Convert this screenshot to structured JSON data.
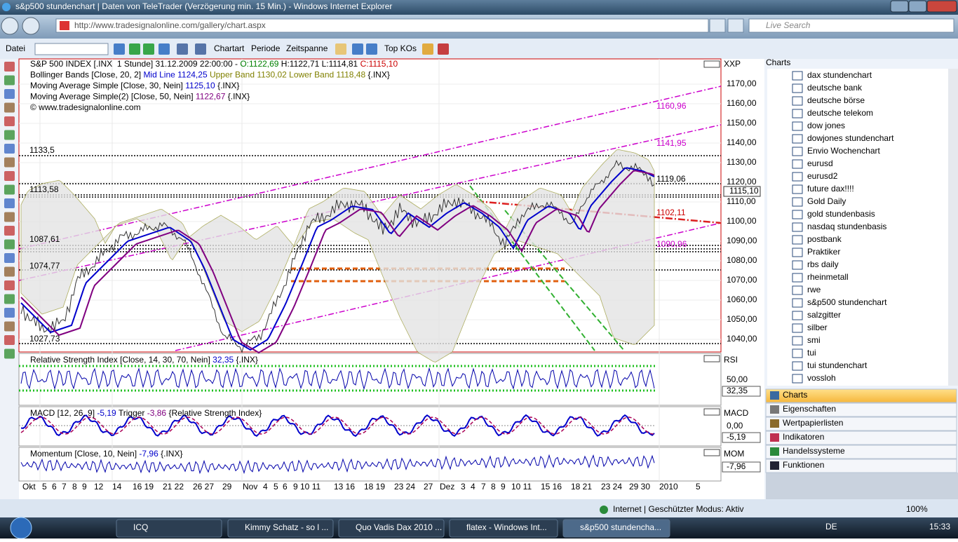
{
  "window": {
    "title": "s&p500 stundenchart | Daten von TeleTrader (Verzögerung min. 15 Min.) - Windows Internet Explorer",
    "address": "http://www.tradesignalonline.com/gallery/chart.aspx",
    "search": "Live Search"
  },
  "toolbar": {
    "file": "Datei",
    "chart_type": "Chartart",
    "period": "Periode",
    "timespan": "Zeitspanne",
    "top": "Top KOs"
  },
  "price_pane": {
    "header": [
      [
        {
          "text": "S&P 500 INDEX [.INX  1 Stunde] 31.12.2009 22:00:00 - ",
          "color": "#000000"
        },
        {
          "text": "O:1122,69",
          "color": "#008000"
        },
        {
          "text": " H:1122,71 L:1114,81 ",
          "color": "#000000"
        },
        {
          "text": "C:1115,10",
          "color": "#cc0000"
        }
      ],
      [
        {
          "text": "Bollinger Bands [Close, 20, 2] ",
          "color": "#000000"
        },
        {
          "text": "Mid Line 1124,25",
          "color": "#0000cc"
        },
        {
          "text": " Upper Band 1130,02 Lower Band 1118,48",
          "color": "#808000"
        },
        {
          "text": " {.INX}",
          "color": "#000000"
        }
      ],
      [
        {
          "text": "Moving Average Simple [Close, 30, Nein] ",
          "color": "#000000"
        },
        {
          "text": "1125,10",
          "color": "#0000cc"
        },
        {
          "text": " {.INX}",
          "color": "#000000"
        }
      ],
      [
        {
          "text": "Moving Average Simple(2) [Close, 50, Nein] ",
          "color": "#000000"
        },
        {
          "text": "1122,67",
          "color": "#800080"
        },
        {
          "text": " {.INX}",
          "color": "#000000"
        }
      ],
      [
        {
          "text": "© www.tradesignalonline.com",
          "color": "#000000"
        }
      ]
    ],
    "axis_title": "XXP",
    "axis_labels": [
      "1170,00",
      "1160,00",
      "1150,00",
      "1140,00",
      "1130,00",
      "1120,00",
      "1110,00",
      "1100,00",
      "1090,00",
      "1080,00",
      "1070,00",
      "1060,00",
      "1050,00",
      "1040,00"
    ],
    "levels_left": [
      "1133,5",
      "1113,58",
      "1087,61",
      "1074,77",
      "1027,73"
    ],
    "levels_right": [
      {
        "text": "1160,96",
        "color": "#cc00cc"
      },
      {
        "text": "1141,95",
        "color": "#cc00cc"
      },
      {
        "text": "1119,06",
        "color": "#000000"
      },
      {
        "text": "1102,11",
        "color": "#cc0000"
      },
      {
        "text": "1090,96",
        "color": "#cc00cc"
      }
    ],
    "last": "1115,10"
  },
  "indicator_panes": [
    {
      "header": [
        {
          "text": "Relative Strength Index [Close, 14, 30, 70, Nein] ",
          "color": "#000000"
        },
        {
          "text": "32,35",
          "color": "#0000cc"
        },
        {
          "text": " {.INX}",
          "color": "#000000"
        }
      ],
      "axis_title": "RSI",
      "axis_label": "50,00",
      "last": "32,35"
    },
    {
      "header": [
        {
          "text": "MACD [12, 26, 9] ",
          "color": "#000000"
        },
        {
          "text": "-5,19",
          "color": "#0000cc"
        },
        {
          "text": " Trigger ",
          "color": "#000000"
        },
        {
          "text": "-3,86",
          "color": "#800080"
        },
        {
          "text": " {Relative Strength Index}",
          "color": "#000000"
        }
      ],
      "axis_title": "MACD",
      "axis_label": "0,00",
      "last": "-5,19"
    },
    {
      "header": [
        {
          "text": "Momentum [Close, 10, Nein] ",
          "color": "#000000"
        },
        {
          "text": "-7,96",
          "color": "#0000cc"
        },
        {
          "text": " {.INX}",
          "color": "#000000"
        }
      ],
      "axis_title": "MOM",
      "last": "-7,96"
    }
  ],
  "x_axis": [
    "Okt",
    "5",
    "6",
    "7",
    "8",
    "9",
    "12",
    "14",
    "16 19",
    "21 22",
    "26 27",
    "29",
    "Nov",
    "4",
    "5",
    "6",
    "9 10 11",
    "13 16",
    "18 19",
    "23 24",
    "27",
    "Dez",
    "3",
    "4",
    "7",
    "8",
    "9",
    "10 11",
    "15 16",
    "18 21",
    "23 24",
    "29 30",
    "2010",
    "5"
  ],
  "sidebar": {
    "title": "Charts",
    "items": [
      "dax stundenchart",
      "deutsche bank",
      "deutsche börse",
      "deutsche telekom",
      "dow jones",
      "dowjones stundenchart",
      "Envio Wochenchart",
      "eurusd",
      "eurusd2",
      "future dax!!!!",
      "Gold Daily",
      "gold stundenbasis",
      "nasdaq stundenbasis",
      "postbank",
      "Praktiker",
      "rbs daily",
      "rheinmetall",
      "rwe",
      "s&p500 stundenchart",
      "salzgitter",
      "silber",
      "smi",
      "tui",
      "tui stundenchart",
      "vossloh"
    ],
    "tabs": [
      "Charts",
      "Eigenschaften",
      "Wertpapierlisten",
      "Indikatoren",
      "Handelssysteme",
      "Funktionen"
    ]
  },
  "status": {
    "zone": "Internet | Geschützter Modus: Aktiv",
    "zoom": "100%"
  },
  "taskbar": {
    "items": [
      "ICQ",
      "Kimmy Schatz - so l ...",
      "Quo Vadis Dax 2010 ...",
      "flatex - Windows Int...",
      "s&p500 stundencha..."
    ],
    "language": "DE",
    "clock": "15:33"
  }
}
